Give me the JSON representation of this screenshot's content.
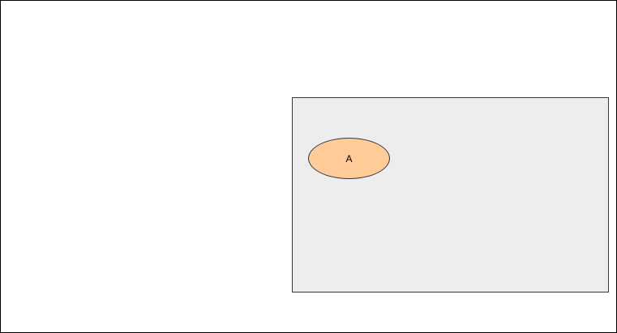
{
  "diagram": {
    "container": {
      "fill_color": "#ededed",
      "stroke_color": "#36393d"
    },
    "node": {
      "label": "A",
      "shape": "ellipse",
      "fill_color": "#ffcc99",
      "stroke_color": "#36393d"
    }
  }
}
